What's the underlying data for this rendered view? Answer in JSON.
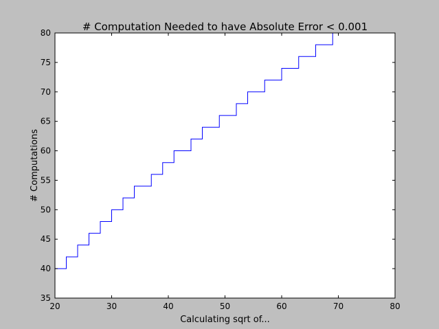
{
  "chart_data": {
    "type": "line",
    "title": "# Computation Needed to have Absolute Error < 0.001",
    "xlabel": "Calculating sqrt of...",
    "ylabel": "# Computations",
    "xlim": [
      20,
      80
    ],
    "ylim": [
      35,
      80
    ],
    "xticks": [
      20,
      30,
      40,
      50,
      60,
      70,
      80
    ],
    "yticks": [
      35,
      40,
      45,
      50,
      55,
      60,
      65,
      70,
      75,
      80
    ],
    "grid": false,
    "series": [
      {
        "color": "#0000ff",
        "step": true,
        "x": [
          20,
          21,
          22,
          23,
          24,
          25,
          26,
          27,
          28,
          29,
          30,
          31,
          32,
          33,
          34,
          35,
          36,
          37,
          38,
          39,
          40,
          41,
          42,
          43,
          44,
          45,
          46,
          47,
          48,
          49,
          50,
          51,
          52,
          53,
          54,
          55,
          56,
          57,
          58,
          59,
          60,
          61,
          62,
          63,
          64,
          65,
          66,
          67,
          68,
          69,
          70,
          71
        ],
        "values": [
          40,
          40,
          42,
          42,
          44,
          44,
          46,
          46,
          48,
          48,
          50,
          50,
          52,
          52,
          54,
          54,
          54,
          56,
          56,
          58,
          58,
          60,
          60,
          60,
          62,
          62,
          64,
          64,
          64,
          66,
          66,
          66,
          68,
          68,
          70,
          70,
          70,
          72,
          72,
          72,
          74,
          74,
          74,
          76,
          76,
          76,
          78,
          78,
          78,
          80,
          80,
          80
        ]
      }
    ]
  },
  "colors": {
    "figure_background": "#bfbfbf",
    "plot_background": "#ffffff",
    "line": "#0000ff"
  }
}
